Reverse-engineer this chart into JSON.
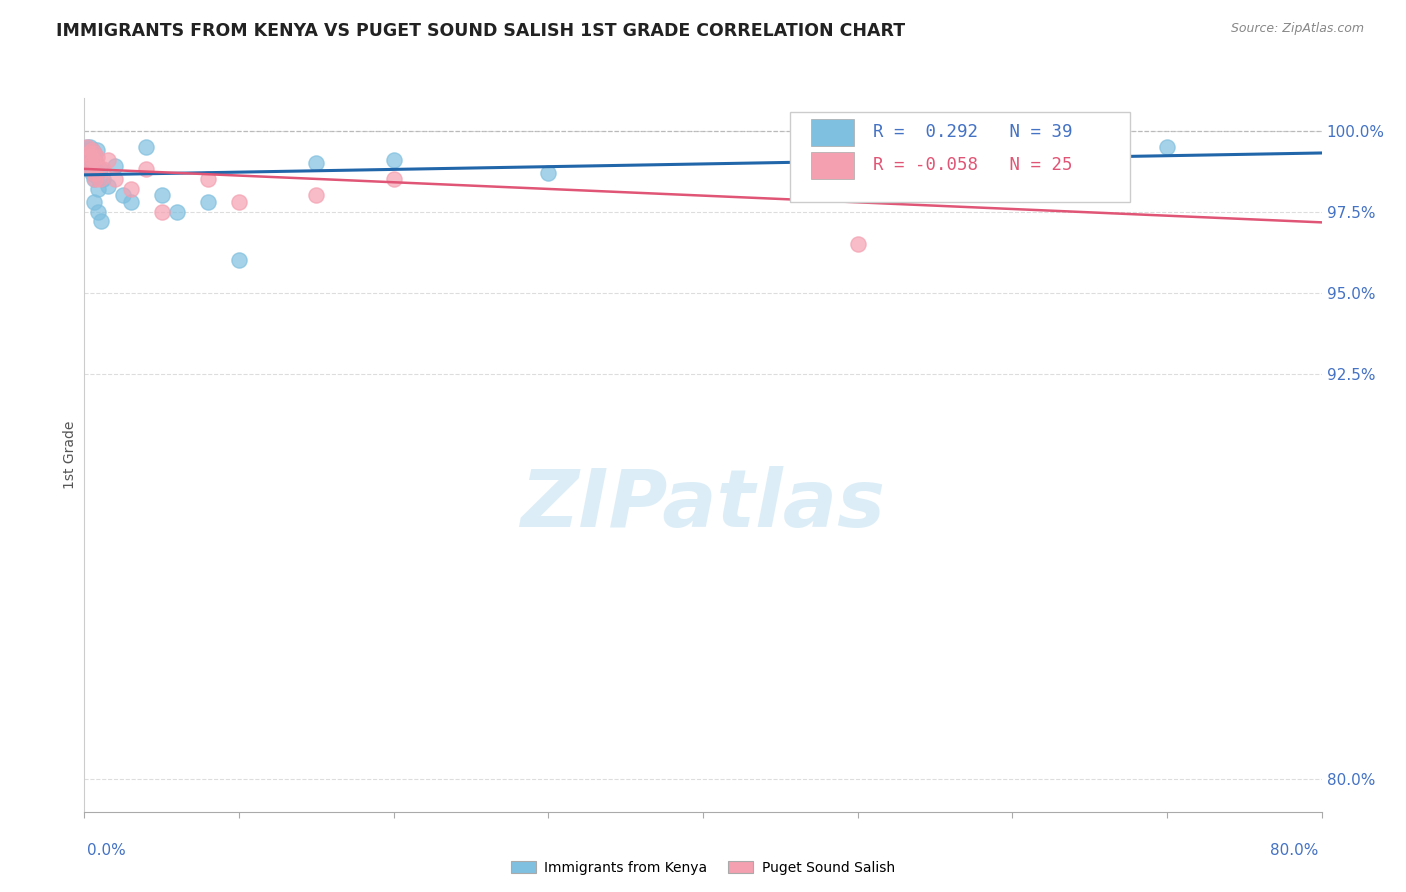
{
  "title": "IMMIGRANTS FROM KENYA VS PUGET SOUND SALISH 1ST GRADE CORRELATION CHART",
  "source": "Source: ZipAtlas.com",
  "ylabel": "1st Grade",
  "xlim": [
    0.0,
    80.0
  ],
  "ylim": [
    79.0,
    101.0
  ],
  "yticks": [
    80.0,
    92.5,
    95.0,
    97.5,
    100.0
  ],
  "ytick_labels": [
    "80.0%",
    "92.5%",
    "95.0%",
    "97.5%",
    "100.0%"
  ],
  "blue_R": 0.292,
  "blue_N": 39,
  "pink_R": -0.058,
  "pink_N": 25,
  "blue_color": "#7fbfdf",
  "pink_color": "#f4a0b0",
  "blue_line_color": "#2266aa",
  "pink_line_color": "#e05575",
  "legend_label_blue": "Immigrants from Kenya",
  "legend_label_pink": "Puget Sound Salish",
  "watermark": "ZIPatlas",
  "blue_x": [
    0.2,
    0.25,
    0.3,
    0.3,
    0.35,
    0.35,
    0.4,
    0.4,
    0.45,
    0.5,
    0.5,
    0.5,
    0.55,
    0.6,
    0.6,
    0.65,
    0.7,
    0.7,
    0.75,
    0.8,
    0.85,
    0.9,
    1.0,
    1.1,
    1.2,
    1.5,
    2.0,
    2.5,
    3.0,
    4.0,
    5.0,
    6.0,
    8.0,
    10.0,
    15.0,
    20.0,
    30.0,
    55.0,
    70.0
  ],
  "blue_y": [
    99.5,
    99.3,
    99.4,
    99.2,
    99.5,
    99.1,
    98.8,
    99.0,
    99.3,
    99.0,
    98.7,
    99.4,
    99.2,
    98.5,
    99.3,
    97.8,
    98.9,
    99.1,
    98.6,
    99.4,
    98.2,
    97.5,
    98.8,
    97.2,
    98.5,
    98.3,
    98.9,
    98.0,
    97.8,
    99.5,
    98.0,
    97.5,
    97.8,
    96.0,
    99.0,
    99.1,
    98.7,
    99.5,
    99.5
  ],
  "pink_x": [
    0.2,
    0.3,
    0.35,
    0.4,
    0.45,
    0.5,
    0.55,
    0.6,
    0.65,
    0.7,
    0.75,
    0.8,
    1.0,
    1.2,
    1.5,
    2.0,
    3.0,
    4.0,
    5.0,
    8.0,
    10.0,
    15.0,
    20.0,
    50.0,
    65.0
  ],
  "pink_y": [
    99.5,
    99.3,
    99.2,
    98.8,
    99.0,
    99.4,
    99.1,
    98.7,
    99.3,
    98.5,
    99.0,
    99.2,
    98.5,
    98.8,
    99.1,
    98.5,
    98.2,
    98.8,
    97.5,
    98.5,
    97.8,
    98.0,
    98.5,
    96.5,
    98.8
  ]
}
